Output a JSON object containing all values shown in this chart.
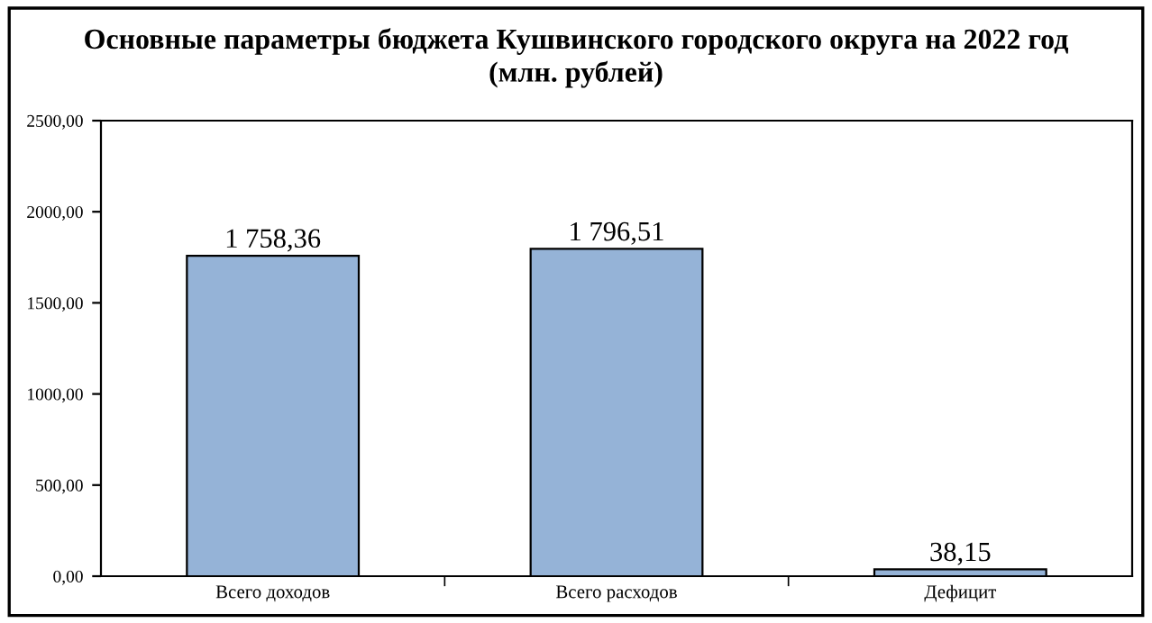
{
  "chart_data": {
    "type": "bar",
    "title": "Основные параметры бюджета Кушвинского городского округа на 2022 год\n(млн. рублей)",
    "categories": [
      "Всего доходов",
      "Всего расходов",
      "Дефицит"
    ],
    "values": [
      1758.36,
      1796.51,
      38.15
    ],
    "value_labels": [
      "1 758,36",
      "1 796,51",
      "38,15"
    ],
    "color": "#95b3d7",
    "ylim": [
      0,
      2500
    ],
    "yticks": [
      {
        "value": 0,
        "label": "0,00"
      },
      {
        "value": 500,
        "label": "500,00"
      },
      {
        "value": 1000,
        "label": "1000,00"
      },
      {
        "value": 1500,
        "label": "1500,00"
      },
      {
        "value": 2000,
        "label": "2000,00"
      },
      {
        "value": 2500,
        "label": "2500,00"
      }
    ],
    "grid": false,
    "legend": false
  }
}
